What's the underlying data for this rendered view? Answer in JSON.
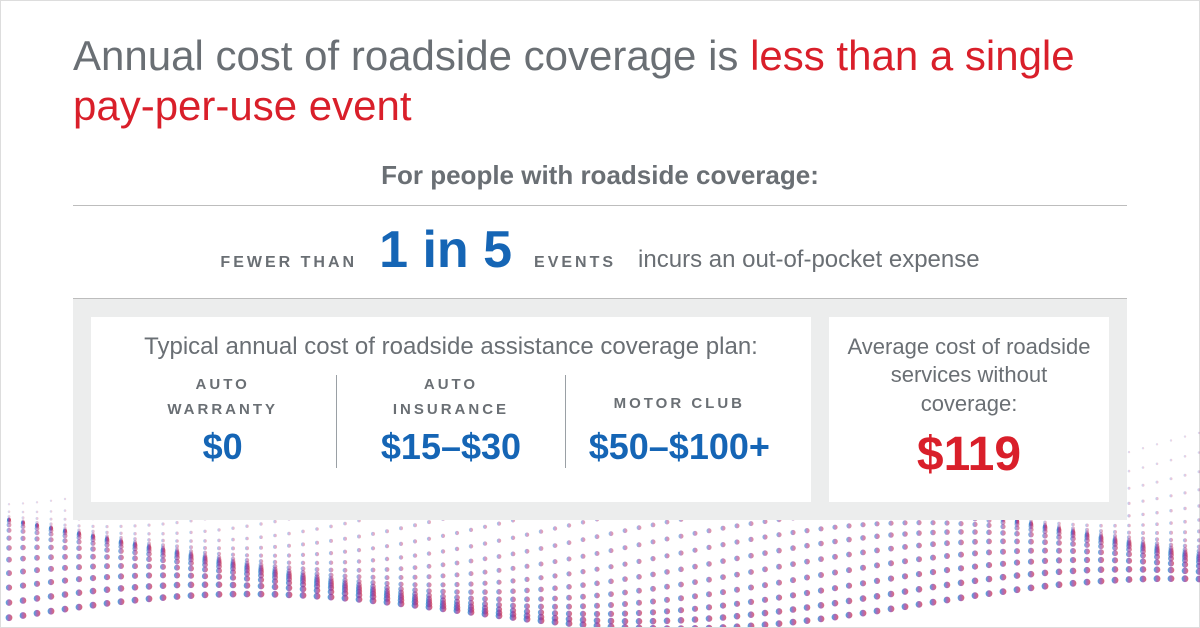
{
  "headline": {
    "part1": "Annual cost of roadside coverage is ",
    "accent": "less than a single pay-per-use event"
  },
  "subhead": "For people with roadside coverage:",
  "stat": {
    "fewer": "FEWER THAN",
    "ratio": "1 in 5",
    "events": "EVENTS",
    "tail": "incurs an out-of-pocket expense"
  },
  "leftCard": {
    "title": "Typical annual cost of roadside assistance coverage plan:",
    "cols": [
      {
        "labelA": "AUTO",
        "labelB": "WARRANTY",
        "price": "$0"
      },
      {
        "labelA": "AUTO",
        "labelB": "INSURANCE",
        "price": "$15–$30"
      },
      {
        "labelA": "MOTOR CLUB",
        "labelB": "",
        "price": "$50–$100+"
      }
    ]
  },
  "rightCard": {
    "title": "Average cost of roadside services without coverage:",
    "price": "$119"
  },
  "colors": {
    "gray": "#6a6f74",
    "blue": "#1565b5",
    "red": "#d91f2a",
    "panel": "#eceded"
  }
}
